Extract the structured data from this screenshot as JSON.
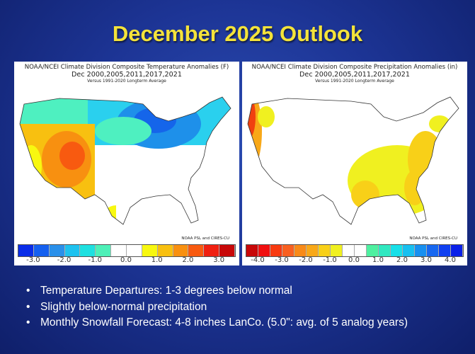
{
  "title": "December 2025 Outlook",
  "temperature_map": {
    "line1": "NOAA/NCEI Climate Division Composite Temperature Anomalies (F)",
    "line2": "Dec   2000,2005,2011,2017,2021",
    "line3": "Versus 1991-2020 Longterm Average",
    "credit": "NOAA PSL and CIRES-CU",
    "legend_colors": [
      "#0a2de8",
      "#1560ef",
      "#2a90ea",
      "#1ec2ef",
      "#1ee0e0",
      "#4ef0b8",
      "#ffffff",
      "#ffffff",
      "#f8f810",
      "#f8c010",
      "#f89010",
      "#f85a10",
      "#f02010",
      "#c80808"
    ],
    "tick_labels": [
      "-3.0",
      "-2.0",
      "-1.0",
      "0.0",
      "1.0",
      "2.0",
      "3.0"
    ],
    "range": [
      -3.5,
      3.5
    ]
  },
  "precipitation_map": {
    "line1": "NOAA/NCEI Climate Division Composite Precipitation Anomalies (in)",
    "line2": "Dec   2000,2005,2011,2017,2021",
    "line3": "Versus 1991-2020 Longterm Average",
    "credit": "NOAA PSL and CIRES-CU",
    "legend_colors": [
      "#c80808",
      "#f01010",
      "#f83a10",
      "#f86020",
      "#f88a18",
      "#f8a818",
      "#f8d018",
      "#f0f020",
      "#ffffff",
      "#ffffff",
      "#4ef0a0",
      "#30e8c0",
      "#18e0e8",
      "#18c0f0",
      "#1890f0",
      "#1868f0",
      "#1040f0",
      "#0a20e8"
    ],
    "tick_labels": [
      "-4.0",
      "-3.0",
      "-2.0",
      "-1.0",
      "0.0",
      "1.0",
      "2.0",
      "3.0",
      "4.0"
    ],
    "range": [
      -4.5,
      4.5
    ]
  },
  "bullets": [
    "Temperature Departures: 1-3 degrees below normal",
    "Slightly below-normal precipitation",
    "Monthly Snowfall Forecast: 4-8 inches LanCo. (5.0\": avg. of 5 analog years)"
  ]
}
